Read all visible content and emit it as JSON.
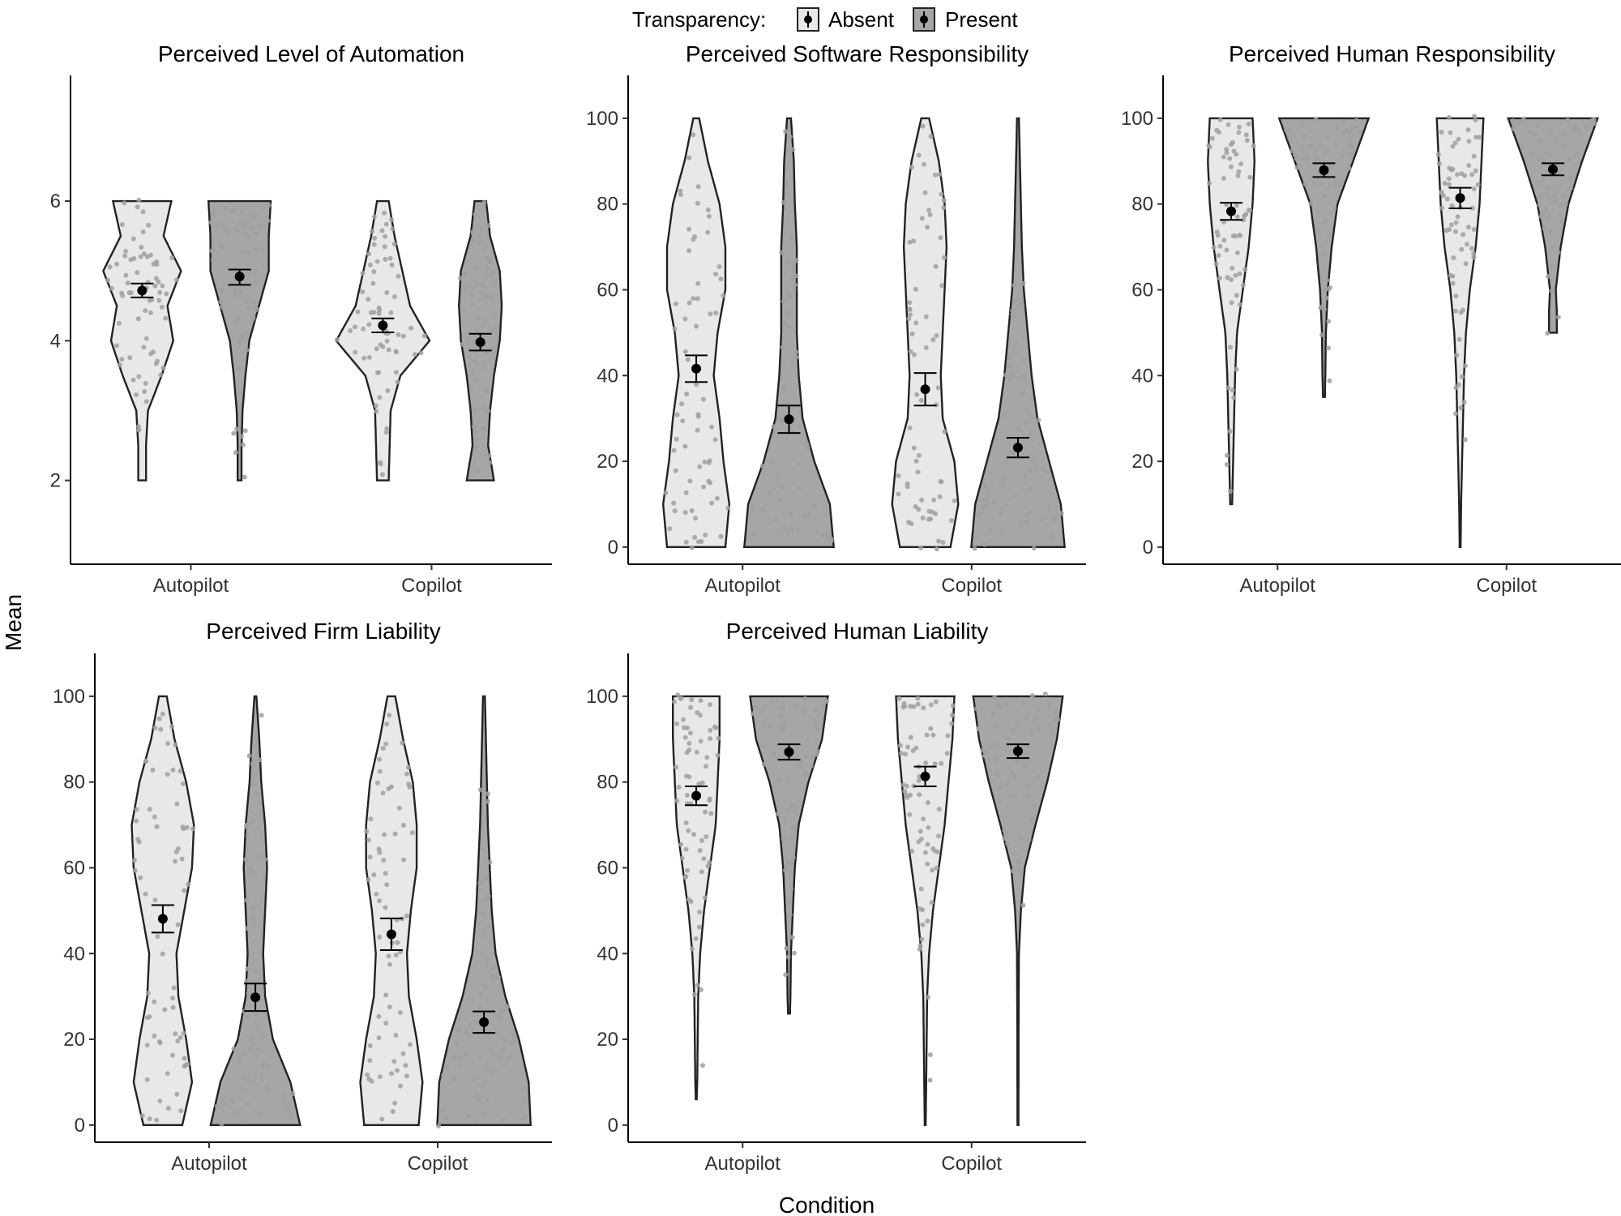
{
  "legend": {
    "title": "Transparency:",
    "items": [
      {
        "label": "Absent",
        "fill": "#e8e8e8"
      },
      {
        "label": "Present",
        "fill": "#a6a6a6"
      }
    ]
  },
  "axes": {
    "xlabel": "Condition",
    "ylabel": "Mean"
  },
  "colors": {
    "absent_fill": "#e8e8e8",
    "present_fill": "#a6a6a6",
    "outline": "#222222",
    "jitter": "#a0a0a0",
    "mean": "#000000"
  },
  "chart_data": [
    {
      "type": "violin",
      "title": "Perceived Level of Automation",
      "categories": [
        "Autopilot",
        "Copilot"
      ],
      "ylim": [
        0.8,
        7.8
      ],
      "yticks": [
        2,
        4,
        6
      ],
      "grid": false,
      "series": [
        {
          "name": "Absent",
          "means": [
            4.72,
            4.22
          ],
          "ci": [
            [
              4.62,
              4.82
            ],
            [
              4.12,
              4.32
            ]
          ],
          "violins": [
            {
              "y": [
                2,
                2.5,
                3,
                3.5,
                4,
                4.5,
                5,
                5.5,
                6
              ],
              "w": [
                0.04,
                0.04,
                0.06,
                0.2,
                0.32,
                0.26,
                0.4,
                0.22,
                0.3
              ]
            },
            {
              "y": [
                2,
                2.5,
                3,
                3.5,
                4,
                4.5,
                5,
                5.5,
                6
              ],
              "w": [
                0.06,
                0.07,
                0.08,
                0.18,
                0.48,
                0.28,
                0.2,
                0.12,
                0.06
              ]
            }
          ]
        },
        {
          "name": "Present",
          "means": [
            4.92,
            3.98
          ],
          "ci": [
            [
              4.8,
              5.02
            ],
            [
              3.86,
              4.1
            ]
          ],
          "violins": [
            {
              "y": [
                2,
                2.5,
                3,
                3.5,
                4,
                4.5,
                5,
                5.5,
                6
              ],
              "w": [
                0.02,
                0.02,
                0.03,
                0.06,
                0.1,
                0.2,
                0.3,
                0.3,
                0.32
              ]
            },
            {
              "y": [
                2,
                2.5,
                3,
                3.5,
                4,
                4.5,
                5,
                5.5,
                6
              ],
              "w": [
                0.14,
                0.08,
                0.1,
                0.14,
                0.2,
                0.22,
                0.2,
                0.1,
                0.06
              ]
            }
          ]
        }
      ]
    },
    {
      "type": "violin",
      "title": "Perceived Software Responsibility",
      "categories": [
        "Autopilot",
        "Copilot"
      ],
      "ylim": [
        -4,
        110
      ],
      "yticks": [
        0,
        20,
        40,
        60,
        80,
        100
      ],
      "grid": false,
      "series": [
        {
          "name": "Absent",
          "means": [
            41.6,
            36.8
          ],
          "ci": [
            [
              38.5,
              44.7
            ],
            [
              33.0,
              40.6
            ]
          ],
          "violins": [
            {
              "y": [
                0,
                10,
                20,
                30,
                40,
                50,
                60,
                70,
                80,
                90,
                100
              ],
              "w": [
                0.3,
                0.34,
                0.28,
                0.24,
                0.18,
                0.22,
                0.3,
                0.3,
                0.24,
                0.12,
                0.03
              ]
            },
            {
              "y": [
                0,
                10,
                20,
                30,
                40,
                50,
                60,
                70,
                80,
                90,
                100
              ],
              "w": [
                0.26,
                0.34,
                0.3,
                0.18,
                0.16,
                0.18,
                0.2,
                0.22,
                0.2,
                0.14,
                0.04
              ]
            }
          ]
        },
        {
          "name": "Present",
          "means": [
            29.8,
            23.2
          ],
          "ci": [
            [
              26.6,
              33.0
            ],
            [
              20.9,
              25.5
            ]
          ],
          "violins": [
            {
              "y": [
                0,
                10,
                20,
                30,
                40,
                50,
                60,
                70,
                80,
                90,
                100
              ],
              "w": [
                0.46,
                0.42,
                0.26,
                0.14,
                0.1,
                0.08,
                0.08,
                0.08,
                0.06,
                0.05,
                0.02
              ]
            },
            {
              "y": [
                0,
                10,
                20,
                30,
                40,
                50,
                60,
                70,
                80,
                90,
                100
              ],
              "w": [
                0.48,
                0.44,
                0.32,
                0.2,
                0.14,
                0.1,
                0.06,
                0.04,
                0.03,
                0.02,
                0.01
              ]
            }
          ]
        }
      ]
    },
    {
      "type": "violin",
      "title": "Perceived Human Responsibility",
      "categories": [
        "Autopilot",
        "Copilot"
      ],
      "ylim": [
        -4,
        110
      ],
      "yticks": [
        0,
        20,
        40,
        60,
        80,
        100
      ],
      "grid": false,
      "series": [
        {
          "name": "Absent",
          "means": [
            78.3,
            81.4
          ],
          "ci": [
            [
              76.3,
              80.3
            ],
            [
              79.0,
              83.8
            ]
          ],
          "violins": [
            {
              "y": [
                10,
                20,
                30,
                40,
                50,
                60,
                70,
                80,
                90,
                100
              ],
              "w": [
                0.01,
                0.02,
                0.03,
                0.04,
                0.06,
                0.12,
                0.18,
                0.22,
                0.24,
                0.22
              ]
            },
            {
              "y": [
                0,
                10,
                20,
                30,
                40,
                50,
                60,
                70,
                80,
                90,
                100
              ],
              "w": [
                0.005,
                0.01,
                0.02,
                0.03,
                0.04,
                0.06,
                0.1,
                0.16,
                0.2,
                0.22,
                0.24
              ]
            }
          ]
        },
        {
          "name": "Present",
          "means": [
            87.9,
            88.1
          ],
          "ci": [
            [
              86.3,
              89.5
            ],
            [
              86.7,
              89.5
            ]
          ],
          "violins": [
            {
              "y": [
                35,
                40,
                50,
                60,
                70,
                80,
                90,
                100
              ],
              "w": [
                0.01,
                0.015,
                0.02,
                0.04,
                0.08,
                0.14,
                0.3,
                0.46
              ]
            },
            {
              "y": [
                50,
                55,
                60,
                70,
                80,
                90,
                100
              ],
              "w": [
                0.04,
                0.04,
                0.03,
                0.08,
                0.16,
                0.3,
                0.46
              ]
            }
          ]
        }
      ]
    },
    {
      "type": "violin",
      "title": "Perceived Firm Liability",
      "categories": [
        "Autopilot",
        "Copilot"
      ],
      "ylim": [
        -4,
        110
      ],
      "yticks": [
        0,
        20,
        40,
        60,
        80,
        100
      ],
      "grid": false,
      "series": [
        {
          "name": "Absent",
          "means": [
            48.1,
            44.5
          ],
          "ci": [
            [
              44.9,
              51.3
            ],
            [
              40.8,
              48.2
            ]
          ],
          "violins": [
            {
              "y": [
                0,
                10,
                20,
                30,
                40,
                50,
                60,
                70,
                80,
                90,
                100
              ],
              "w": [
                0.2,
                0.3,
                0.24,
                0.16,
                0.14,
                0.22,
                0.3,
                0.32,
                0.24,
                0.12,
                0.04
              ]
            },
            {
              "y": [
                0,
                10,
                20,
                30,
                40,
                50,
                60,
                70,
                80,
                90,
                100
              ],
              "w": [
                0.28,
                0.32,
                0.26,
                0.18,
                0.16,
                0.2,
                0.26,
                0.26,
                0.22,
                0.12,
                0.04
              ]
            }
          ]
        },
        {
          "name": "Present",
          "means": [
            29.8,
            24.0
          ],
          "ci": [
            [
              26.6,
              33.0
            ],
            [
              21.5,
              26.5
            ]
          ],
          "violins": [
            {
              "y": [
                0,
                10,
                20,
                30,
                40,
                50,
                60,
                70,
                80,
                90,
                100
              ],
              "w": [
                0.46,
                0.36,
                0.18,
                0.1,
                0.08,
                0.1,
                0.12,
                0.1,
                0.06,
                0.04,
                0.01
              ]
            },
            {
              "y": [
                0,
                10,
                20,
                30,
                40,
                50,
                60,
                70,
                80,
                90,
                100
              ],
              "w": [
                0.48,
                0.46,
                0.36,
                0.22,
                0.12,
                0.08,
                0.06,
                0.04,
                0.03,
                0.02,
                0.01
              ]
            }
          ]
        }
      ]
    },
    {
      "type": "violin",
      "title": "Perceived Human Liability",
      "categories": [
        "Autopilot",
        "Copilot"
      ],
      "ylim": [
        -4,
        110
      ],
      "yticks": [
        0,
        20,
        40,
        60,
        80,
        100
      ],
      "grid": false,
      "series": [
        {
          "name": "Absent",
          "means": [
            76.8,
            81.3
          ],
          "ci": [
            [
              74.6,
              79.0
            ],
            [
              79.0,
              83.6
            ]
          ],
          "violins": [
            {
              "y": [
                6,
                10,
                20,
                30,
                40,
                50,
                60,
                70,
                80,
                90,
                100
              ],
              "w": [
                0.005,
                0.01,
                0.015,
                0.02,
                0.04,
                0.08,
                0.14,
                0.2,
                0.22,
                0.24,
                0.24
              ]
            },
            {
              "y": [
                0,
                10,
                20,
                30,
                40,
                50,
                60,
                70,
                80,
                90,
                100
              ],
              "w": [
                0.005,
                0.01,
                0.015,
                0.02,
                0.04,
                0.08,
                0.14,
                0.2,
                0.24,
                0.28,
                0.3
              ]
            }
          ]
        },
        {
          "name": "Present",
          "means": [
            87.0,
            87.2
          ],
          "ci": [
            [
              85.2,
              88.8
            ],
            [
              85.6,
              88.8
            ]
          ],
          "violins": [
            {
              "y": [
                26,
                30,
                40,
                50,
                60,
                70,
                80,
                90,
                100
              ],
              "w": [
                0.01,
                0.015,
                0.02,
                0.04,
                0.06,
                0.1,
                0.2,
                0.34,
                0.4
              ]
            },
            {
              "y": [
                0,
                10,
                20,
                30,
                40,
                50,
                60,
                70,
                80,
                90,
                100
              ],
              "w": [
                0.005,
                0.006,
                0.006,
                0.008,
                0.01,
                0.03,
                0.07,
                0.18,
                0.3,
                0.4,
                0.46
              ]
            }
          ]
        }
      ]
    }
  ]
}
